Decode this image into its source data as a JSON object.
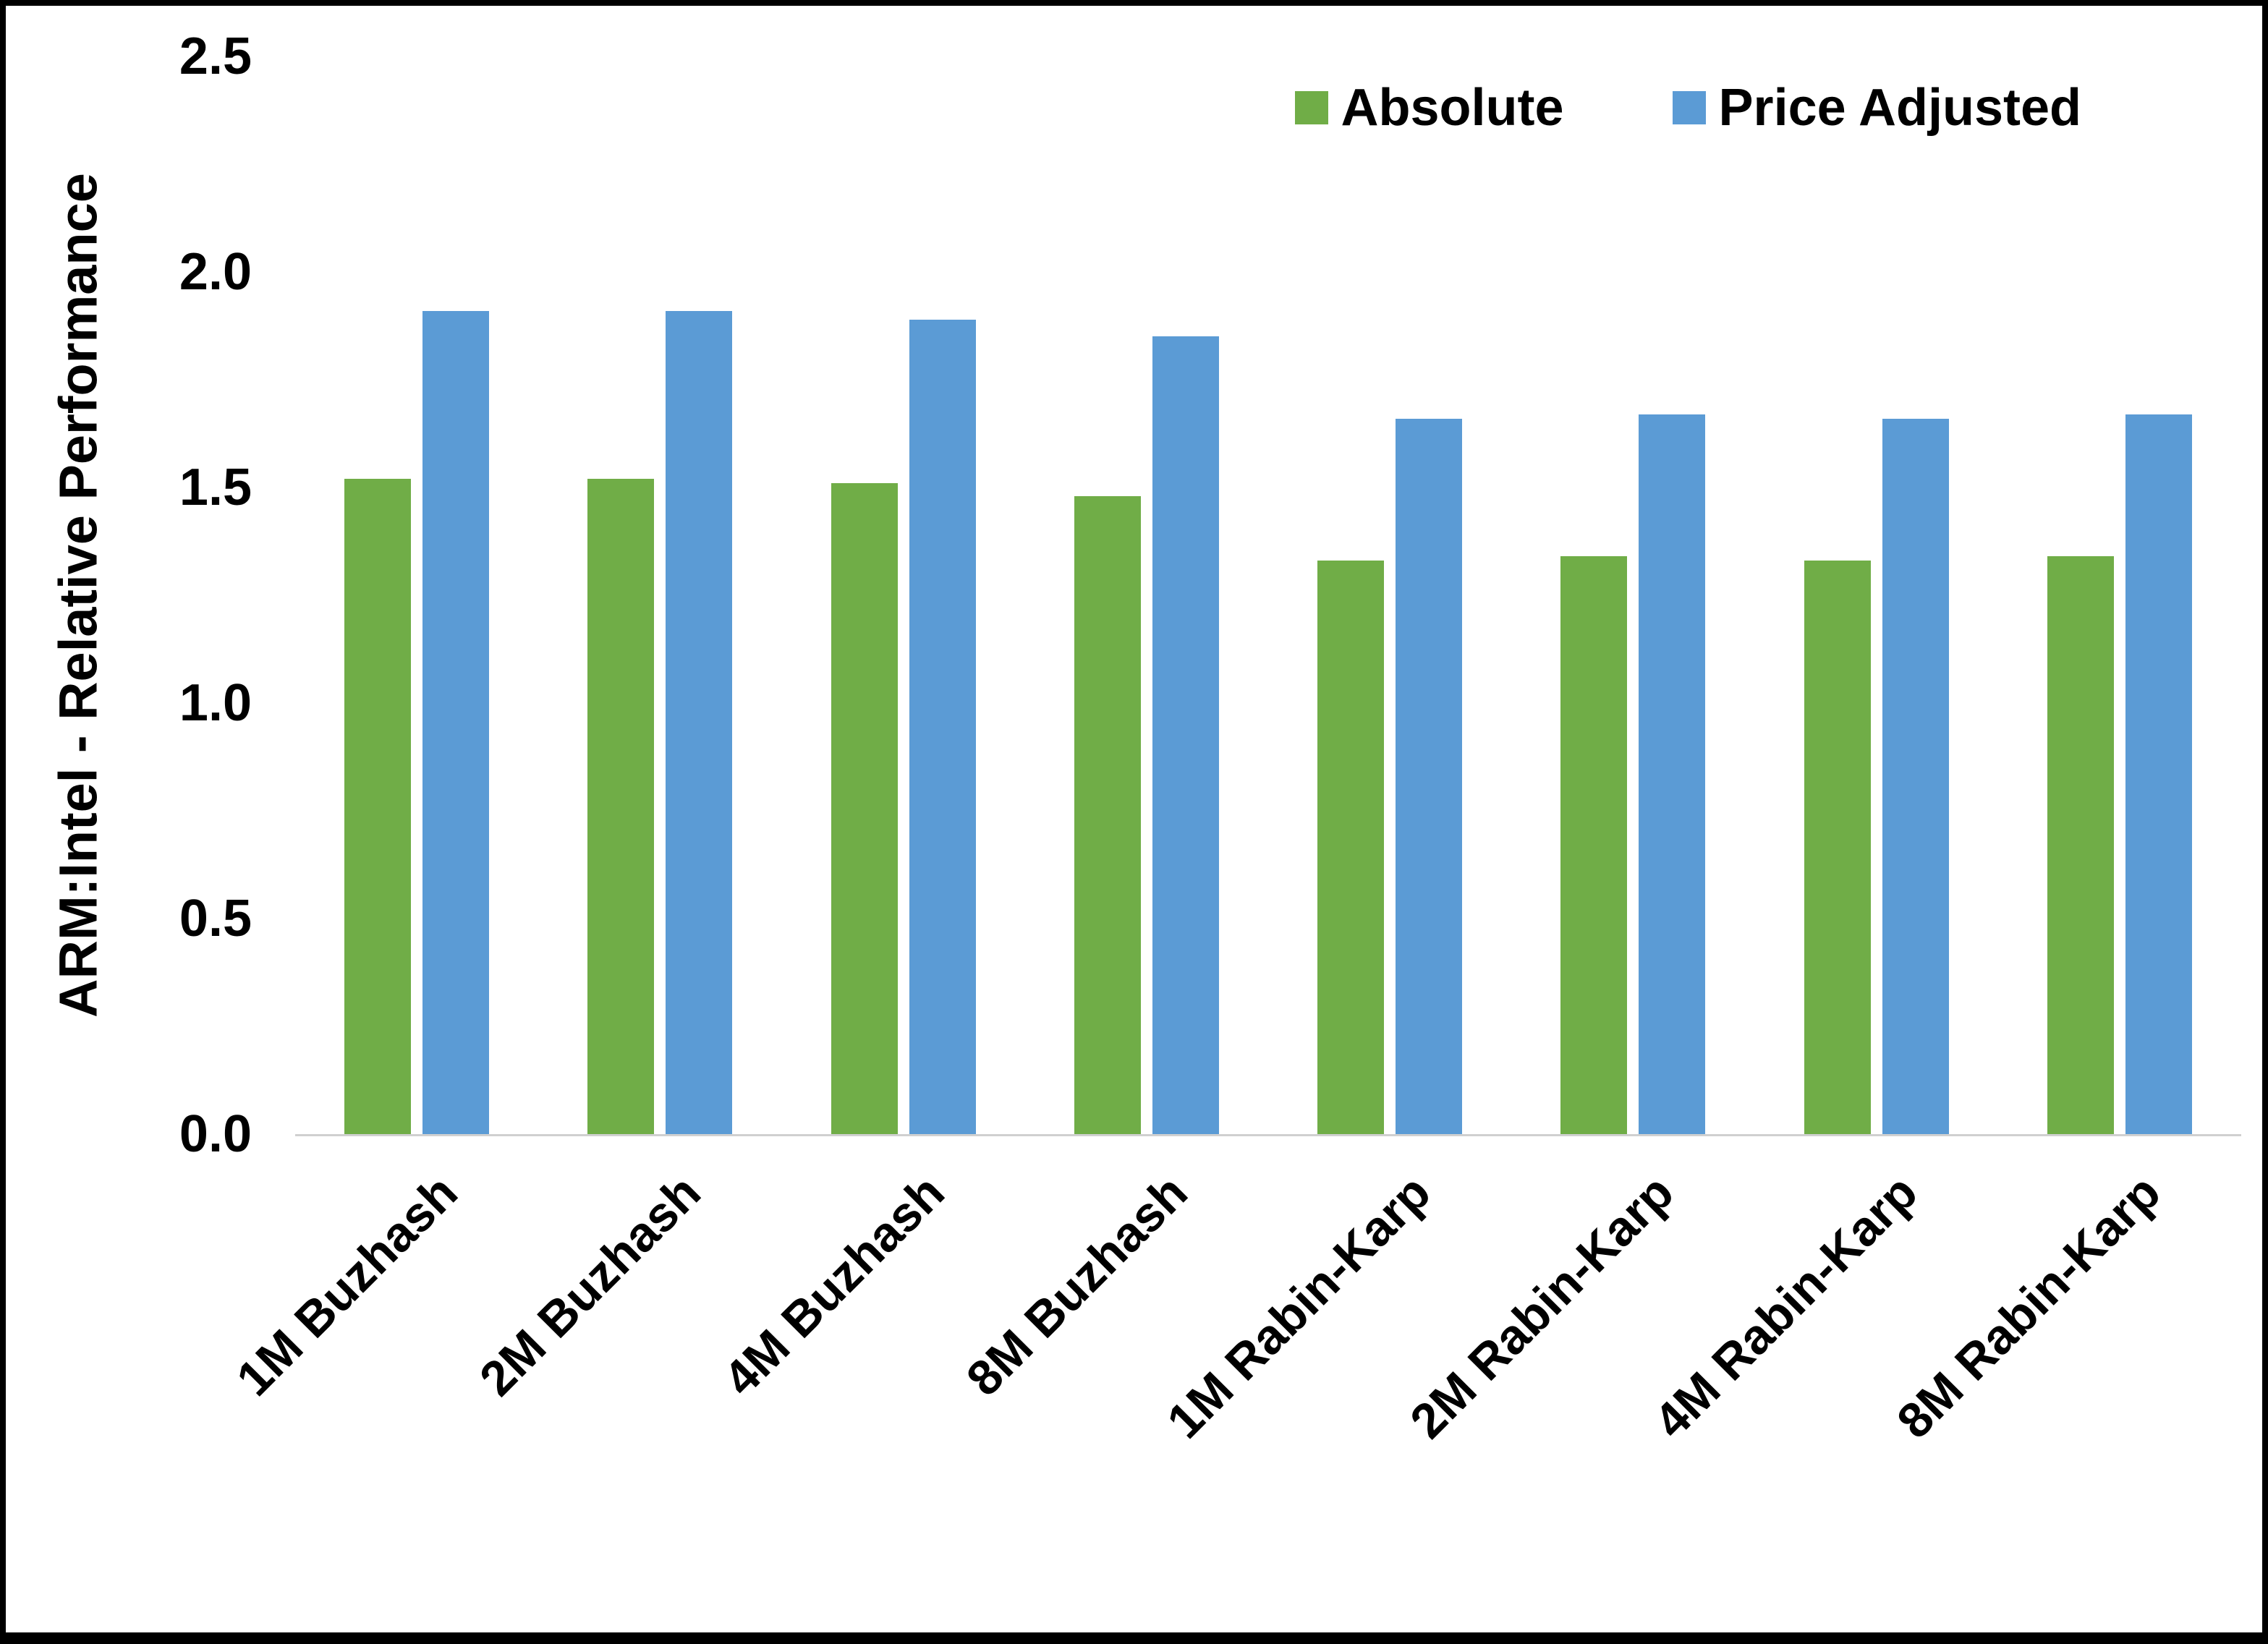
{
  "chart_data": {
    "type": "bar",
    "title": "",
    "xlabel": "",
    "ylabel": "ARM:Intel - Relative Performance",
    "ylim": [
      0,
      2.5
    ],
    "yticks": [
      0.0,
      0.5,
      1.0,
      1.5,
      2.0,
      2.5
    ],
    "ytick_labels": [
      "0.0",
      "0.5",
      "1.0",
      "1.5",
      "2.0",
      "2.5"
    ],
    "grid": false,
    "legend_position": "top-right",
    "categories": [
      "1M Buzhash",
      "2M Buzhash",
      "4M Buzhash",
      "8M Buzhash",
      "1M Rabin-Karp",
      "2M Rabin-Karp",
      "4M Rabin-Karp",
      "8M Rabin-Karp"
    ],
    "series": [
      {
        "name": "Absolute",
        "color": "#70AD47",
        "values": [
          1.52,
          1.52,
          1.51,
          1.48,
          1.33,
          1.34,
          1.33,
          1.34
        ]
      },
      {
        "name": "Price Adjusted",
        "color": "#5B9BD5",
        "values": [
          1.91,
          1.91,
          1.89,
          1.85,
          1.66,
          1.67,
          1.66,
          1.67
        ]
      }
    ]
  }
}
